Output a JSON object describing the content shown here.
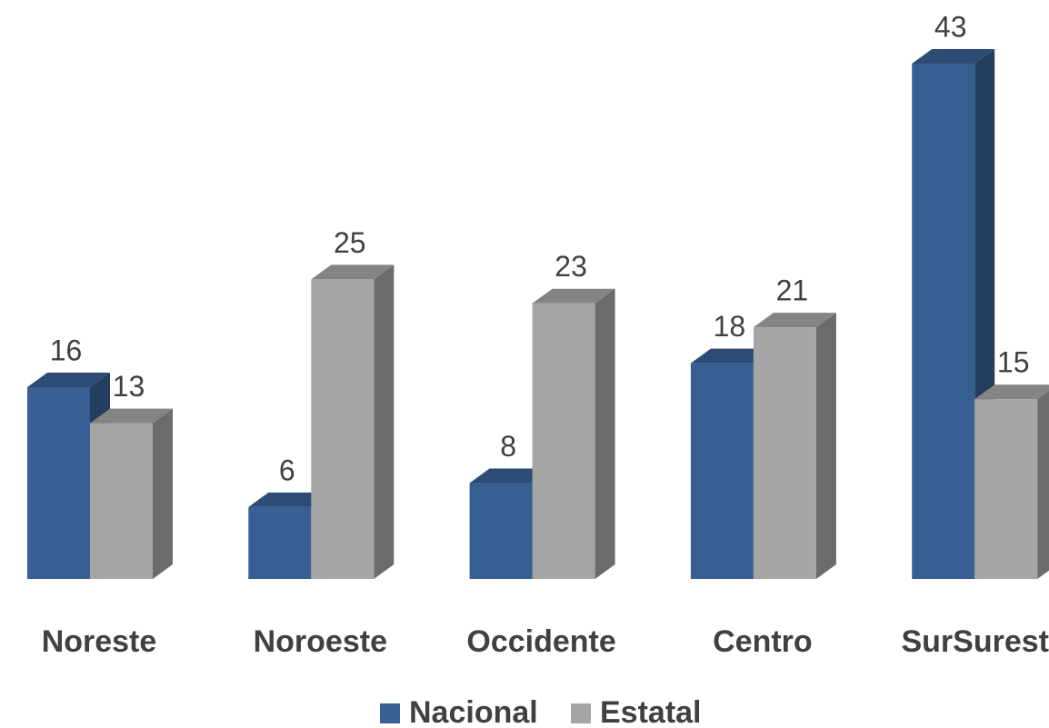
{
  "chart_data": {
    "type": "bar3d",
    "categories": [
      "Noreste",
      "Noroeste",
      "Occidente",
      "Centro",
      "SurSureste"
    ],
    "series": [
      {
        "name": "Nacional",
        "color": "#375f93",
        "values": [
          16,
          6,
          8,
          18,
          43
        ]
      },
      {
        "name": "Estatal",
        "color": "#a5a5a5",
        "values": [
          13,
          25,
          23,
          21,
          15
        ]
      }
    ],
    "legend": "bottom"
  }
}
